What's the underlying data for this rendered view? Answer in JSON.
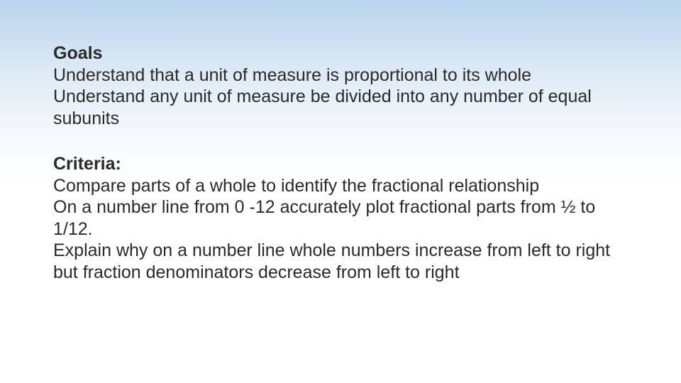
{
  "slide": {
    "background_gradient": [
      "#b8d4ed",
      "#dce9f5",
      "#f5f9fc",
      "#ffffff"
    ],
    "text_color": "#2a2a2a",
    "font_family": "Arial",
    "font_size_pt": 19,
    "goals": {
      "heading": "Goals",
      "lines": [
        "Understand that a unit of measure is proportional to its whole",
        "Understand any unit of measure be divided into any number of equal subunits"
      ]
    },
    "criteria": {
      "heading": "Criteria:",
      "lines": [
        "Compare parts of a whole to identify the fractional relationship",
        "On a number line from 0 -12 accurately plot fractional parts from ½ to 1/12.",
        "Explain why on a number line whole numbers increase from left to right but fraction denominators decrease from left to right"
      ]
    }
  }
}
